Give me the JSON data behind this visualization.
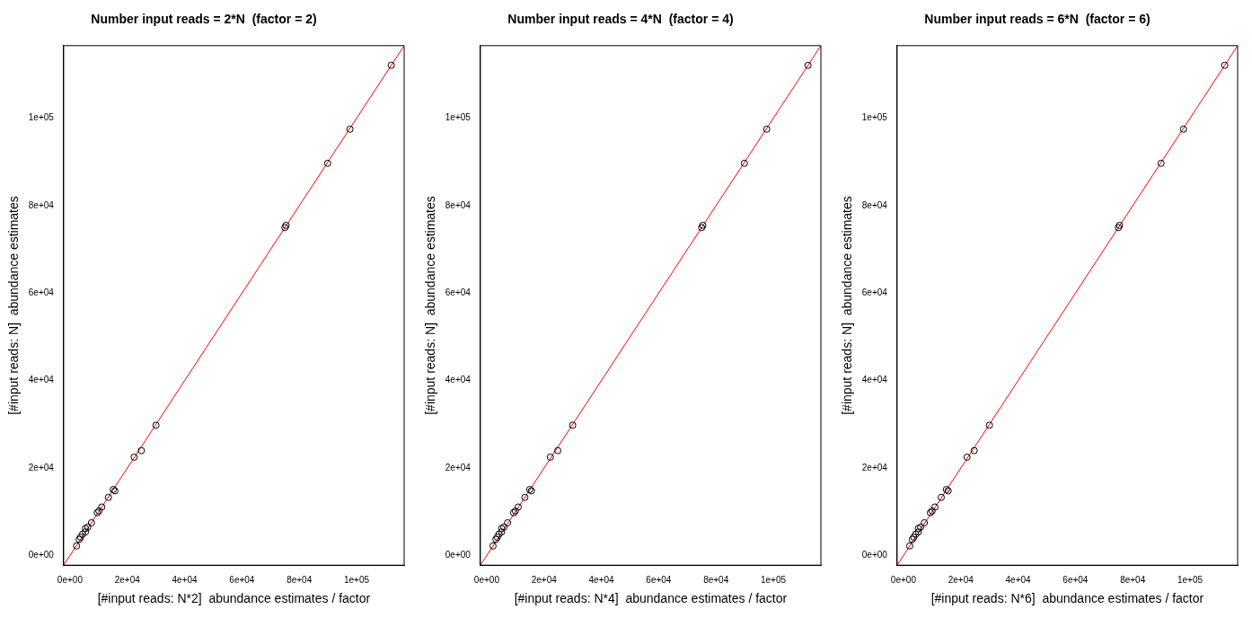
{
  "chart_data": [
    {
      "type": "scatter",
      "title": "Number input reads = 2*N  (factor = 2)",
      "xlabel": "[#input reads: N*2]  abundance estimates / factor",
      "ylabel": "[#input reads: N]  abundance estimates",
      "xlim": [
        -2200,
        116600
      ],
      "ylim": [
        -2200,
        116600
      ],
      "xticks": [
        {
          "value": 0,
          "label": "0e+00"
        },
        {
          "value": 20000,
          "label": "2e+04"
        },
        {
          "value": 40000,
          "label": "4e+04"
        },
        {
          "value": 60000,
          "label": "6e+04"
        },
        {
          "value": 80000,
          "label": "8e+04"
        },
        {
          "value": 100000,
          "label": "1e+05"
        }
      ],
      "yticks": [
        {
          "value": 0,
          "label": "0e+00"
        },
        {
          "value": 20000,
          "label": "2e+04"
        },
        {
          "value": 40000,
          "label": "4e+04"
        },
        {
          "value": 60000,
          "label": "6e+04"
        },
        {
          "value": 80000,
          "label": "8e+04"
        },
        {
          "value": 100000,
          "label": "1e+05"
        }
      ],
      "grid": false,
      "series": [
        {
          "type": "scatter",
          "marker": "circle",
          "color": "#000000",
          "x": [
            2300,
            3200,
            3700,
            4400,
            5400,
            5400,
            6200,
            7500,
            9500,
            10100,
            11100,
            13400,
            15100,
            15700,
            22400,
            24900,
            30000,
            75000,
            75400,
            89900,
            97700,
            112100
          ],
          "values": [
            2200,
            3700,
            4200,
            4900,
            5400,
            6200,
            6500,
            7500,
            9800,
            10200,
            11100,
            13300,
            15100,
            14800,
            22500,
            24000,
            29800,
            75000,
            75500,
            89700,
            97500,
            112100
          ]
        },
        {
          "type": "line",
          "marker": "none",
          "color": "#ff0000",
          "x": [
            -2200,
            116600
          ],
          "values": [
            -2200,
            116600
          ]
        }
      ]
    },
    {
      "type": "scatter",
      "title": "Number input reads = 4*N  (factor = 4)",
      "xlabel": "[#input reads: N*4]  abundance estimates / factor",
      "ylabel": "[#input reads: N]  abundance estimates",
      "xlim": [
        -2200,
        116600
      ],
      "ylim": [
        -2200,
        116600
      ],
      "xticks": [
        {
          "value": 0,
          "label": "0e+00"
        },
        {
          "value": 20000,
          "label": "2e+04"
        },
        {
          "value": 40000,
          "label": "4e+04"
        },
        {
          "value": 60000,
          "label": "6e+04"
        },
        {
          "value": 80000,
          "label": "8e+04"
        },
        {
          "value": 100000,
          "label": "1e+05"
        }
      ],
      "yticks": [
        {
          "value": 0,
          "label": "0e+00"
        },
        {
          "value": 20000,
          "label": "2e+04"
        },
        {
          "value": 40000,
          "label": "4e+04"
        },
        {
          "value": 60000,
          "label": "6e+04"
        },
        {
          "value": 80000,
          "label": "8e+04"
        },
        {
          "value": 100000,
          "label": "1e+05"
        }
      ],
      "grid": false,
      "series": [
        {
          "type": "scatter",
          "marker": "circle",
          "color": "#000000",
          "x": [
            2200,
            3200,
            3700,
            4300,
            5200,
            5200,
            6000,
            7300,
            9400,
            10000,
            11000,
            13300,
            15000,
            15600,
            22200,
            24800,
            30000,
            75000,
            75400,
            89900,
            97700,
            112100
          ],
          "values": [
            2200,
            3700,
            4200,
            4900,
            5400,
            6200,
            6500,
            7500,
            9800,
            10200,
            11100,
            13300,
            15100,
            14800,
            22500,
            24000,
            29800,
            75000,
            75500,
            89700,
            97500,
            112100
          ]
        },
        {
          "type": "line",
          "marker": "none",
          "color": "#ff0000",
          "x": [
            -2200,
            116600
          ],
          "values": [
            -2200,
            116600
          ]
        }
      ]
    },
    {
      "type": "scatter",
      "title": "Number input reads = 6*N  (factor = 6)",
      "xlabel": "[#input reads: N*6]  abundance estimates / factor",
      "ylabel": "[#input reads: N]  abundance estimates",
      "xlim": [
        -2200,
        116600
      ],
      "ylim": [
        -2200,
        116600
      ],
      "xticks": [
        {
          "value": 0,
          "label": "0e+00"
        },
        {
          "value": 20000,
          "label": "2e+04"
        },
        {
          "value": 40000,
          "label": "4e+04"
        },
        {
          "value": 60000,
          "label": "6e+04"
        },
        {
          "value": 80000,
          "label": "8e+04"
        },
        {
          "value": 100000,
          "label": "1e+05"
        }
      ],
      "yticks": [
        {
          "value": 0,
          "label": "0e+00"
        },
        {
          "value": 20000,
          "label": "2e+04"
        },
        {
          "value": 40000,
          "label": "4e+04"
        },
        {
          "value": 60000,
          "label": "6e+04"
        },
        {
          "value": 80000,
          "label": "8e+04"
        },
        {
          "value": 100000,
          "label": "1e+05"
        }
      ],
      "grid": false,
      "series": [
        {
          "type": "scatter",
          "marker": "circle",
          "color": "#000000",
          "x": [
            2200,
            3100,
            3600,
            4300,
            5200,
            5200,
            6000,
            7300,
            9400,
            10000,
            11000,
            13200,
            15000,
            15600,
            22200,
            24700,
            30000,
            75000,
            75400,
            89900,
            97700,
            112100
          ],
          "values": [
            2200,
            3700,
            4200,
            4900,
            5400,
            6200,
            6500,
            7500,
            9800,
            10200,
            11100,
            13300,
            15100,
            14800,
            22500,
            24000,
            29800,
            75000,
            75500,
            89700,
            97500,
            112100
          ]
        },
        {
          "type": "line",
          "marker": "none",
          "color": "#ff0000",
          "x": [
            -2200,
            116600
          ],
          "values": [
            -2200,
            116600
          ]
        }
      ]
    }
  ]
}
